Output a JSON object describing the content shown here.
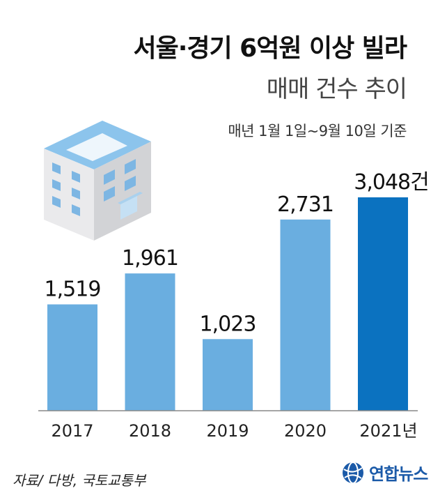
{
  "title": "서울·경기 6억원 이상 빌라",
  "subtitle": "매매 건수 추이",
  "note": "매년 1월 1일~9월 10일 기준",
  "source": "자료/ 다방, 국토교통부",
  "brand": "연합뉴스",
  "colors": {
    "bar": "#6aaee0",
    "bar_highlight": "#0b72c0",
    "axis": "#888888",
    "brand": "#1b5aa8"
  },
  "chart_data": {
    "type": "bar",
    "title": "서울·경기 6억원 이상 빌라",
    "subtitle": "매매 건수 추이",
    "categories": [
      "2017",
      "2018",
      "2019",
      "2020",
      "2021"
    ],
    "category_labels": [
      "2017",
      "2018",
      "2019",
      "2020",
      "2021년"
    ],
    "values": [
      1519,
      1961,
      1023,
      2731,
      3048
    ],
    "value_labels": [
      "1,519",
      "1,961",
      "1,023",
      "2,731",
      "3,048건"
    ],
    "unit": "건",
    "highlight_index": 4,
    "ylim": [
      0,
      3048
    ],
    "grid": false,
    "legend": "none"
  }
}
